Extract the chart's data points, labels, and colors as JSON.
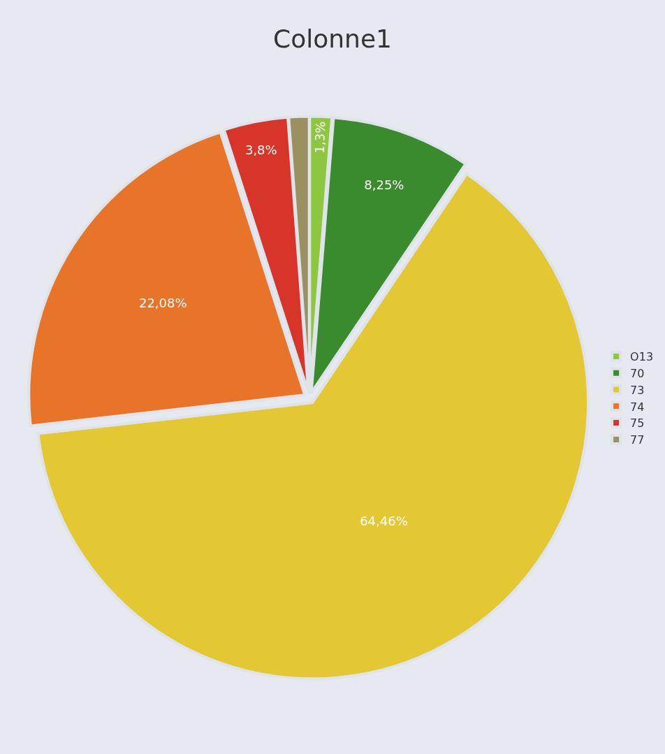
{
  "chart_data": {
    "type": "pie",
    "title": "Colonne1",
    "categories": [
      "O13",
      "70",
      "73",
      "74",
      "75",
      "77"
    ],
    "values": [
      1.3,
      8.25,
      64.46,
      22.08,
      3.8,
      1.2
    ],
    "colors": [
      "#8dc63f",
      "#3a8a2e",
      "#e3c834",
      "#e8742a",
      "#d8352a",
      "#9a9060"
    ],
    "value_labels": [
      "1,3%",
      "8,25%",
      "64,46%",
      "22,08%",
      "3,8%",
      null
    ],
    "legend": "right"
  }
}
